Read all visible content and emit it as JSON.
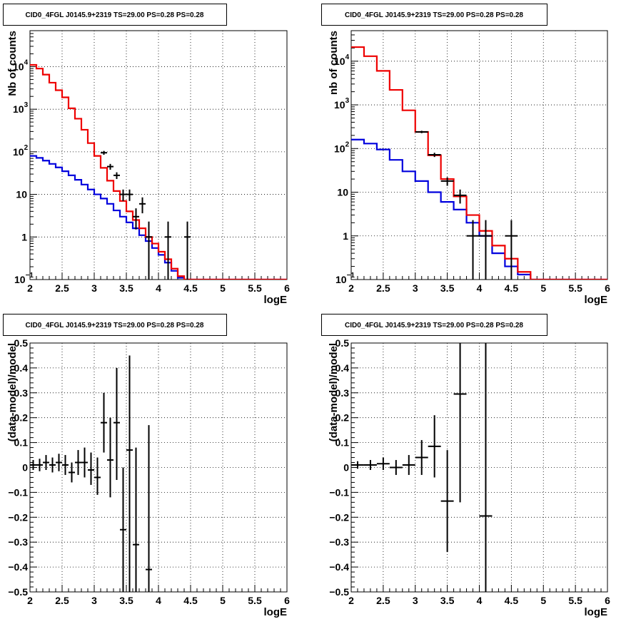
{
  "chart_data": [
    {
      "type": "step-histogram",
      "title": "CID0_4FGL J0145.9+2319 TS=29.00 PS=0.28 PS=0.28",
      "xlabel": "logE",
      "ylabel": "Nb of counts",
      "yscale": "log",
      "xlim": [
        2,
        6
      ],
      "ylim": [
        0.1,
        70000
      ],
      "x_ticks": [
        "2",
        "2.5",
        "3",
        "3.5",
        "4",
        "4.5",
        "5",
        "5.5",
        "6"
      ],
      "grid": true,
      "legend": "none",
      "bin_edges": [
        2.0,
        2.1,
        2.2,
        2.3,
        2.4,
        2.5,
        2.6,
        2.7,
        2.8,
        2.9,
        3.0,
        3.1,
        3.2,
        3.3,
        3.4,
        3.5,
        3.6,
        3.7,
        3.8,
        3.9,
        4.0,
        4.1,
        4.2,
        4.3,
        4.4,
        4.5,
        4.6,
        4.7,
        4.8,
        4.9,
        5.0,
        5.1,
        5.2,
        5.3,
        5.4,
        5.5,
        5.6,
        5.7,
        5.8,
        5.9,
        6.0
      ],
      "series": [
        {
          "color": "#ee0000",
          "values": [
            11000,
            9000,
            6500,
            4200,
            2800,
            1900,
            1050,
            600,
            330,
            160,
            80,
            42,
            21,
            12,
            7,
            4,
            2.5,
            1.6,
            1.0,
            0.7,
            0.45,
            0.3,
            0.18,
            0.12,
            0.1,
            0.1,
            0.1,
            0.1,
            0.1,
            0.1,
            0.1,
            0.1,
            0.1,
            0.1,
            0.1,
            0.1,
            0.1,
            0.1,
            0.1,
            0.1
          ]
        },
        {
          "color": "#0000dd",
          "values": [
            80,
            72,
            62,
            52,
            43,
            35,
            28,
            22,
            17,
            13,
            10,
            8,
            6,
            4.2,
            3,
            2.2,
            1.6,
            1.1,
            0.8,
            0.55,
            0.38,
            0.25,
            0.16,
            0.11,
            0.1,
            0.1,
            0.1,
            0.1,
            0.1,
            0.1,
            0.1,
            0.1,
            0.1,
            0.1,
            0.1,
            0.1,
            0.1,
            0.1,
            0.1,
            0.1
          ]
        }
      ],
      "data_points": [
        {
          "x": 3.15,
          "y": 95,
          "ylo": 85,
          "yhi": 105
        },
        {
          "x": 3.25,
          "y": 45,
          "ylo": 38,
          "yhi": 52
        },
        {
          "x": 3.35,
          "y": 28,
          "ylo": 23,
          "yhi": 33
        },
        {
          "x": 3.45,
          "y": 10,
          "ylo": 7,
          "yhi": 13
        },
        {
          "x": 3.55,
          "y": 10,
          "ylo": 7,
          "yhi": 13
        },
        {
          "x": 3.65,
          "y": 3,
          "ylo": 1.5,
          "yhi": 4.7
        },
        {
          "x": 3.75,
          "y": 6,
          "ylo": 3.6,
          "yhi": 8.5
        },
        {
          "x": 3.85,
          "y": 1,
          "ylo": 0.1,
          "yhi": 2.3
        },
        {
          "x": 4.15,
          "y": 1,
          "ylo": 0.1,
          "yhi": 2.3
        },
        {
          "x": 4.45,
          "y": 1,
          "ylo": 0.1,
          "yhi": 2.3
        }
      ]
    },
    {
      "type": "step-histogram",
      "title": "CID0_4FGL J0145.9+2319 TS=29.00 PS=0.28 PS=0.28",
      "xlabel": "logE",
      "ylabel": "nb of counts",
      "yscale": "log",
      "xlim": [
        2,
        6
      ],
      "ylim": [
        0.1,
        50000
      ],
      "x_ticks": [
        "2",
        "2.5",
        "3",
        "3.5",
        "4",
        "4.5",
        "5",
        "5.5",
        "6"
      ],
      "grid": true,
      "legend": "none",
      "bin_edges": [
        2.0,
        2.2,
        2.4,
        2.6,
        2.8,
        3.0,
        3.2,
        3.4,
        3.6,
        3.8,
        4.0,
        4.2,
        4.4,
        4.6,
        4.8,
        5.0,
        5.2,
        5.4,
        5.6,
        5.8,
        6.0
      ],
      "series": [
        {
          "color": "#ee0000",
          "values": [
            21000,
            13000,
            6000,
            2200,
            750,
            240,
            70,
            20,
            8,
            3,
            1.3,
            0.6,
            0.3,
            0.15,
            0.1,
            0.1,
            0.1,
            0.1,
            0.1,
            0.1
          ]
        },
        {
          "color": "#0000dd",
          "values": [
            160,
            130,
            95,
            55,
            30,
            18,
            10,
            6,
            4,
            2,
            1,
            0.4,
            0.2,
            0.13,
            0.1,
            0.1,
            0.1,
            0.1,
            0.1,
            0.1
          ]
        }
      ],
      "data_points": [
        {
          "x": 3.3,
          "y": 72,
          "ylo": 64,
          "yhi": 80
        },
        {
          "x": 3.1,
          "y": 240,
          "ylo": 225,
          "yhi": 255
        },
        {
          "x": 3.5,
          "y": 18,
          "ylo": 14,
          "yhi": 22
        },
        {
          "x": 3.7,
          "y": 8.5,
          "ylo": 5.5,
          "yhi": 11.5
        },
        {
          "x": 3.9,
          "y": 1,
          "ylo": 0.1,
          "yhi": 2.3
        },
        {
          "x": 4.1,
          "y": 1,
          "ylo": 0.1,
          "yhi": 2.3
        },
        {
          "x": 4.5,
          "y": 1,
          "ylo": 0.1,
          "yhi": 2.3
        }
      ]
    },
    {
      "type": "errorbar",
      "title": "CID0_4FGL J0145.9+2319 TS=29.00 PS=0.28 PS=0.28",
      "xlabel": "logE",
      "ylabel": "(data-model)/model",
      "xlim": [
        2,
        6
      ],
      "ylim": [
        -0.5,
        0.5
      ],
      "x_ticks": [
        "2",
        "2.5",
        "3",
        "3.5",
        "4",
        "4.5",
        "5",
        "5.5",
        "6"
      ],
      "y_ticks": [
        "-0.5",
        "-0.4",
        "-0.3",
        "-0.2",
        "-0.1",
        "0",
        "0.1",
        "0.2",
        "0.3",
        "0.4",
        "0.5"
      ],
      "grid": true,
      "legend": "none",
      "xerr": 0.05,
      "points": [
        {
          "x": 2.05,
          "y": 0.01,
          "ylo": -0.01,
          "yhi": 0.03
        },
        {
          "x": 2.15,
          "y": 0.01,
          "ylo": -0.015,
          "yhi": 0.035
        },
        {
          "x": 2.25,
          "y": 0.02,
          "ylo": -0.01,
          "yhi": 0.05
        },
        {
          "x": 2.35,
          "y": 0.01,
          "ylo": -0.02,
          "yhi": 0.04
        },
        {
          "x": 2.45,
          "y": 0.02,
          "ylo": -0.015,
          "yhi": 0.055
        },
        {
          "x": 2.55,
          "y": 0.01,
          "ylo": -0.03,
          "yhi": 0.05
        },
        {
          "x": 2.65,
          "y": -0.02,
          "ylo": -0.06,
          "yhi": 0.02
        },
        {
          "x": 2.75,
          "y": 0.02,
          "ylo": -0.03,
          "yhi": 0.07
        },
        {
          "x": 2.85,
          "y": 0.02,
          "ylo": -0.04,
          "yhi": 0.08
        },
        {
          "x": 2.95,
          "y": -0.01,
          "ylo": -0.07,
          "yhi": 0.06
        },
        {
          "x": 3.05,
          "y": -0.04,
          "ylo": -0.11,
          "yhi": 0.04
        },
        {
          "x": 3.15,
          "y": 0.18,
          "ylo": 0.06,
          "yhi": 0.3
        },
        {
          "x": 3.25,
          "y": 0.03,
          "ylo": -0.12,
          "yhi": 0.2
        },
        {
          "x": 3.35,
          "y": 0.18,
          "ylo": -0.05,
          "yhi": 0.4
        },
        {
          "x": 3.45,
          "y": -0.25,
          "ylo": -0.5,
          "yhi": 0.0
        },
        {
          "x": 3.55,
          "y": 0.07,
          "ylo": -0.5,
          "yhi": 0.45
        },
        {
          "x": 3.65,
          "y": -0.31,
          "ylo": -0.5,
          "yhi": 0.08
        },
        {
          "x": 3.85,
          "y": -0.41,
          "ylo": -0.5,
          "yhi": 0.17
        }
      ]
    },
    {
      "type": "errorbar",
      "title": "CID0_4FGL J0145.9+2319 TS=29.00 PS=0.28 PS=0.28",
      "xlabel": "logE",
      "ylabel": "(data-model)/model",
      "xlim": [
        2,
        6
      ],
      "ylim": [
        -0.5,
        0.5
      ],
      "x_ticks": [
        "2",
        "2.5",
        "3",
        "3.5",
        "4",
        "4.5",
        "5",
        "5.5",
        "6"
      ],
      "y_ticks": [
        "-0.5",
        "-0.4",
        "-0.3",
        "-0.2",
        "-0.1",
        "0",
        "0.1",
        "0.2",
        "0.3",
        "0.4",
        "0.5"
      ],
      "grid": true,
      "legend": "none",
      "xerr": 0.1,
      "points": [
        {
          "x": 2.1,
          "y": 0.01,
          "ylo": -0.005,
          "yhi": 0.025
        },
        {
          "x": 2.3,
          "y": 0.01,
          "ylo": -0.01,
          "yhi": 0.03
        },
        {
          "x": 2.5,
          "y": 0.015,
          "ylo": -0.01,
          "yhi": 0.04
        },
        {
          "x": 2.7,
          "y": 0.0,
          "ylo": -0.03,
          "yhi": 0.03
        },
        {
          "x": 2.9,
          "y": 0.01,
          "ylo": -0.03,
          "yhi": 0.05
        },
        {
          "x": 3.1,
          "y": 0.04,
          "ylo": -0.03,
          "yhi": 0.11
        },
        {
          "x": 3.3,
          "y": 0.085,
          "ylo": -0.04,
          "yhi": 0.21
        },
        {
          "x": 3.5,
          "y": -0.135,
          "ylo": -0.34,
          "yhi": 0.07
        },
        {
          "x": 3.7,
          "y": 0.295,
          "ylo": -0.14,
          "yhi": 0.5
        },
        {
          "x": 4.1,
          "y": -0.195,
          "ylo": -0.5,
          "yhi": 0.5
        }
      ]
    }
  ]
}
